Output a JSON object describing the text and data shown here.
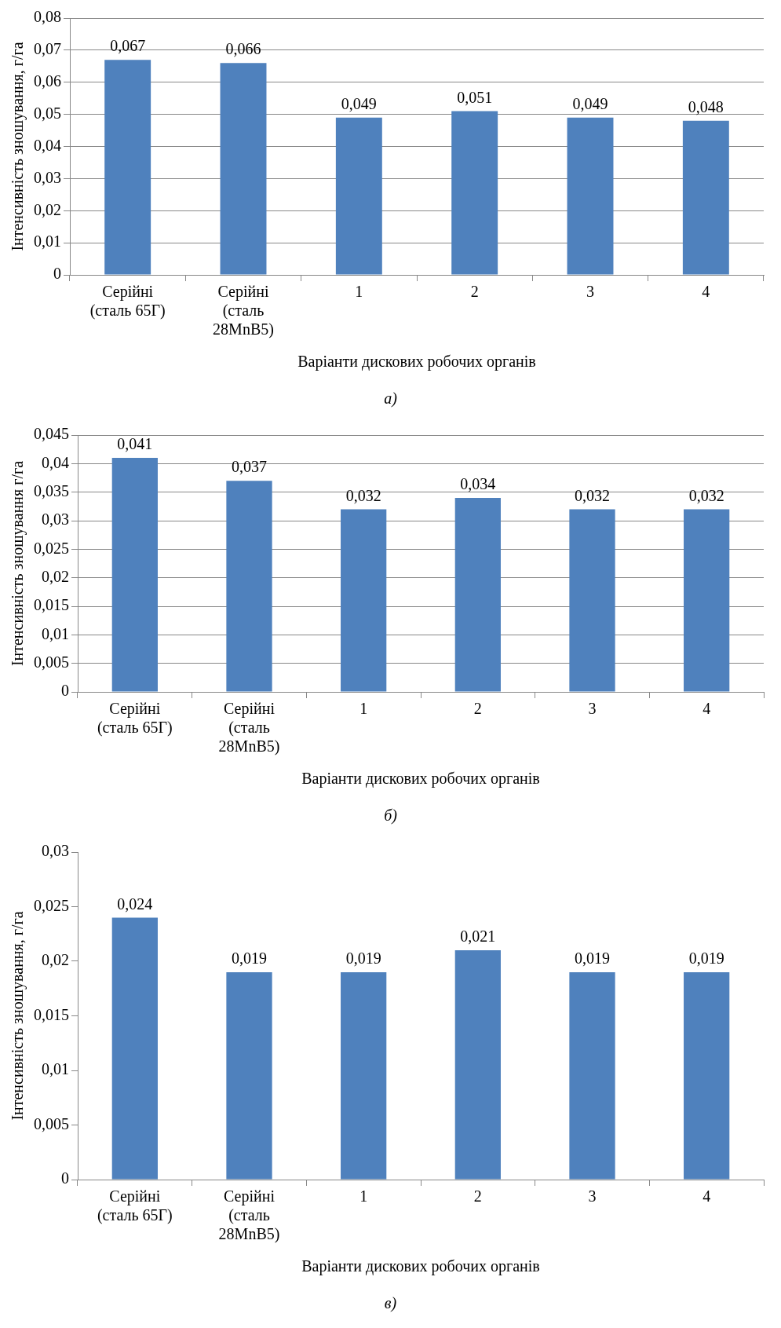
{
  "chart_data": [
    {
      "type": "bar",
      "ylabel": "Інтенсивність зношування, г/га",
      "xlabel": "Варіанти дискових робочих органів",
      "categories": [
        "Серійні (сталь 65Г)",
        "Серійні (сталь 28MnB5)",
        "1",
        "2",
        "3",
        "4"
      ],
      "values": [
        0.067,
        0.066,
        0.049,
        0.051,
        0.049,
        0.048
      ],
      "value_labels": [
        "0,067",
        "0,066",
        "0,049",
        "0,051",
        "0,049",
        "0,048"
      ],
      "color": "#4f81bd",
      "ylim": [
        0,
        0.08
      ],
      "yticks": [
        {
          "value": 0,
          "label": "0"
        },
        {
          "value": 0.01,
          "label": "0,01"
        },
        {
          "value": 0.02,
          "label": "0,02"
        },
        {
          "value": 0.03,
          "label": "0,03"
        },
        {
          "value": 0.04,
          "label": "0,04"
        },
        {
          "value": 0.05,
          "label": "0,05"
        },
        {
          "value": 0.06,
          "label": "0,06"
        },
        {
          "value": 0.07,
          "label": "0,07"
        },
        {
          "value": 0.08,
          "label": "0,08"
        }
      ],
      "grid": "y",
      "legend": false,
      "annotations": [
        "а)"
      ]
    },
    {
      "type": "bar",
      "ylabel": "Інтенсивність зношування г/га",
      "xlabel": "Варіанти дискових робочих органів",
      "categories": [
        "Серійні (сталь 65Г)",
        "Серійні (сталь 28MnB5)",
        "1",
        "2",
        "3",
        "4"
      ],
      "values": [
        0.041,
        0.037,
        0.032,
        0.034,
        0.032,
        0.032
      ],
      "value_labels": [
        "0,041",
        "0,037",
        "0,032",
        "0,034",
        "0,032",
        "0,032"
      ],
      "color": "#4f81bd",
      "ylim": [
        0,
        0.045
      ],
      "yticks": [
        {
          "value": 0,
          "label": "0"
        },
        {
          "value": 0.005,
          "label": "0,005"
        },
        {
          "value": 0.01,
          "label": "0,01"
        },
        {
          "value": 0.015,
          "label": "0,015"
        },
        {
          "value": 0.02,
          "label": "0,02"
        },
        {
          "value": 0.025,
          "label": "0,025"
        },
        {
          "value": 0.03,
          "label": "0,03"
        },
        {
          "value": 0.035,
          "label": "0,035"
        },
        {
          "value": 0.04,
          "label": "0,04"
        },
        {
          "value": 0.045,
          "label": "0,045"
        }
      ],
      "grid": "y",
      "legend": false,
      "annotations": [
        "б)"
      ]
    },
    {
      "type": "bar",
      "ylabel": "Інтенсивність зношування, г/га",
      "xlabel": "Варіанти дискових робочих органів",
      "categories": [
        "Серійні (сталь 65Г)",
        "Серійні (сталь 28MnB5)",
        "1",
        "2",
        "3",
        "4"
      ],
      "values": [
        0.024,
        0.019,
        0.019,
        0.021,
        0.019,
        0.019
      ],
      "value_labels": [
        "0,024",
        "0,019",
        "0,019",
        "0,021",
        "0,019",
        "0,019"
      ],
      "color": "#4f81bd",
      "ylim": [
        0,
        0.03
      ],
      "yticks": [
        {
          "value": 0,
          "label": "0"
        },
        {
          "value": 0.005,
          "label": "0,005"
        },
        {
          "value": 0.01,
          "label": "0,01"
        },
        {
          "value": 0.015,
          "label": "0,015"
        },
        {
          "value": 0.02,
          "label": "0,02"
        },
        {
          "value": 0.025,
          "label": "0,025"
        },
        {
          "value": 0.03,
          "label": "0,03"
        }
      ],
      "grid": false,
      "legend": false,
      "annotations": [
        "в)"
      ]
    }
  ]
}
